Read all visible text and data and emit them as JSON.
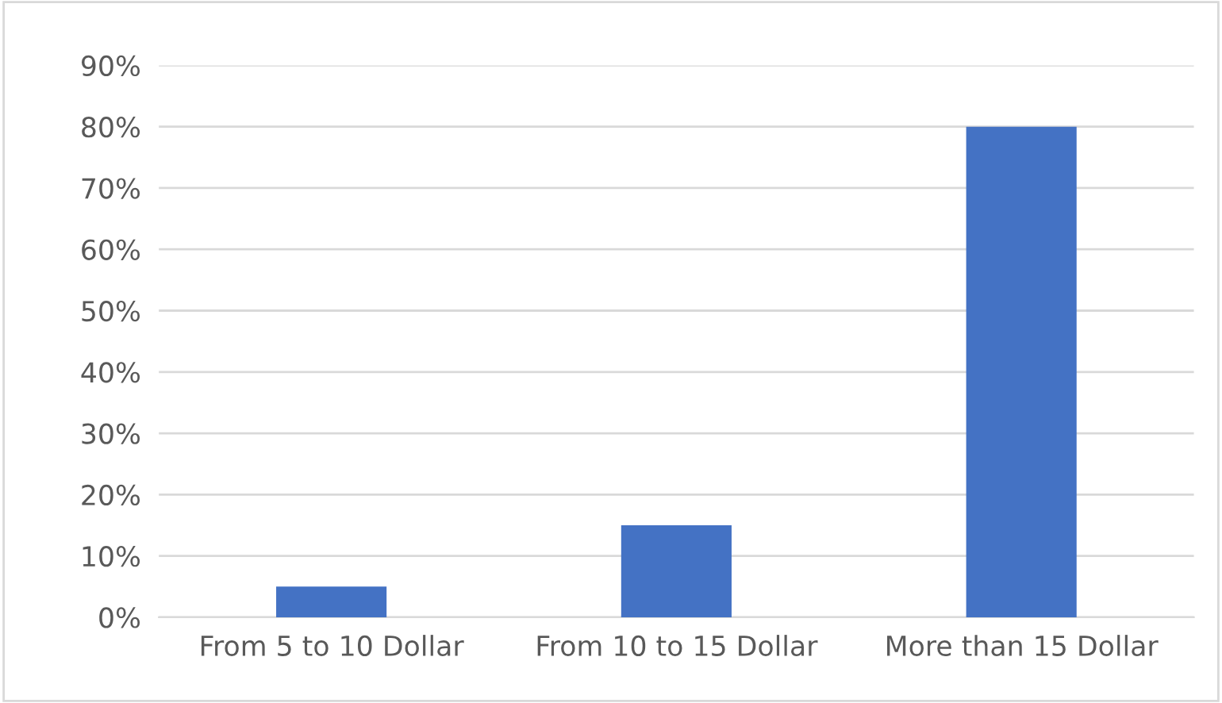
{
  "chart_data": {
    "type": "bar",
    "categories": [
      "From 5 to 10 Dollar",
      "From 10 to 15 Dollar",
      "More than 15 Dollar"
    ],
    "values": [
      5,
      15,
      80
    ],
    "color": "#4472c4",
    "ylim": [
      0,
      90
    ],
    "yticks": [
      {
        "value": 0,
        "label": "0%"
      },
      {
        "value": 10,
        "label": "10%"
      },
      {
        "value": 20,
        "label": "20%"
      },
      {
        "value": 30,
        "label": "30%"
      },
      {
        "value": 40,
        "label": "40%"
      },
      {
        "value": 50,
        "label": "50%"
      },
      {
        "value": 60,
        "label": "60%"
      },
      {
        "value": 70,
        "label": "70%"
      },
      {
        "value": 80,
        "label": "80%"
      },
      {
        "value": 90,
        "label": "90%"
      }
    ],
    "grid": "y",
    "legend": false
  }
}
